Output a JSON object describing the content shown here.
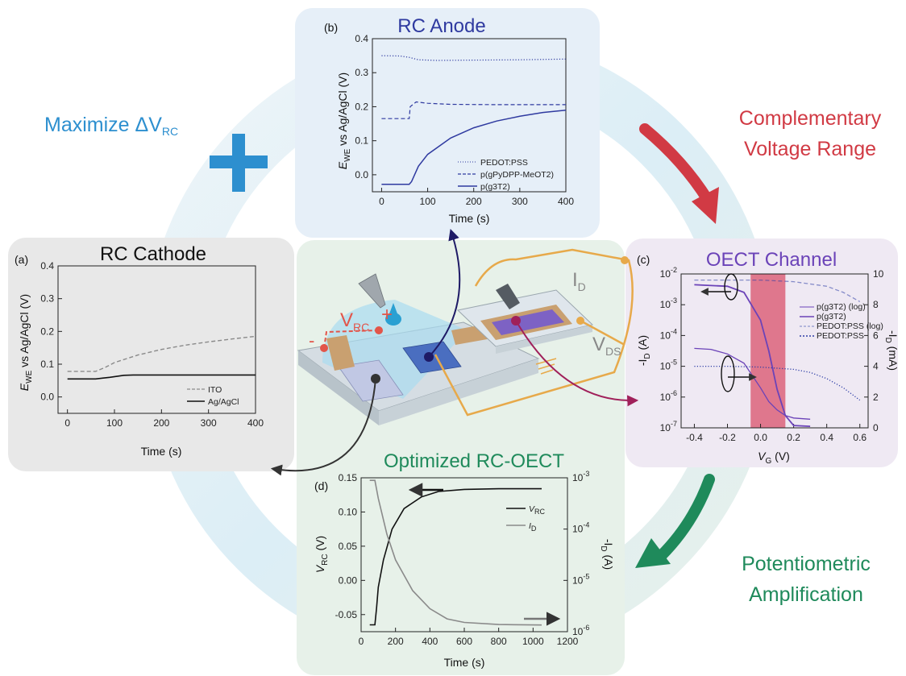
{
  "colors": {
    "anode_series": "#2f3aa0",
    "cathode_solid": "#111111",
    "cathode_dashed": "#8a8a8a",
    "channel_pgt": "#6b43b8",
    "channel_pedot": "#2e3ea6",
    "window": "#d9506b",
    "maximize": "#2d8fcf",
    "complementary": "#d13a44",
    "potentiometric": "#1f8a5b"
  },
  "callouts": {
    "maximize_prefix": "Maximize ",
    "maximize_delta": "ΔV",
    "maximize_sub": "RC",
    "complementary_line1": "Complementary",
    "complementary_line2": "Voltage Range",
    "potentiometric_line1": "Potentiometric",
    "potentiometric_line2": "Amplification"
  },
  "device": {
    "vrc_label": "V",
    "vrc_sub": "RC",
    "plus": "+",
    "minus": "-",
    "id_label": "I",
    "id_sub": "D",
    "vds_label": "V",
    "vds_sub": "DS"
  },
  "panels": {
    "anode": {
      "title": "RC Anode",
      "letter": "(b)",
      "ylabel_E": "E",
      "ylabel_sub": "WE",
      "ylabel_rest": " vs Ag/AgCl (V)",
      "xlabel": "Time (s)",
      "x_ticks": [
        "0",
        "100",
        "200",
        "300",
        "400"
      ],
      "y_ticks": [
        "0.0",
        "0.1",
        "0.2",
        "0.3",
        "0.4"
      ]
    },
    "cathode": {
      "title": "RC Cathode",
      "letter": "(a)",
      "ylabel_E": "E",
      "ylabel_sub": "WE",
      "ylabel_rest": " vs Ag/AgCl (V)",
      "xlabel": "Time (s)",
      "x_ticks": [
        "0",
        "100",
        "200",
        "300",
        "400"
      ],
      "y_ticks": [
        "0.0",
        "0.1",
        "0.2",
        "0.3",
        "0.4"
      ]
    },
    "channel": {
      "title": "OECT Channel",
      "letter": "(c)",
      "ylabel_left": "-I",
      "ylabel_left_sub": "D",
      "ylabel_left_unit": " (A)",
      "ylabel_right": "-I",
      "ylabel_right_sub": "D",
      "ylabel_right_unit": " (mA)",
      "xlabel_V": "V",
      "xlabel_sub": "G",
      "xlabel_unit": " (V)",
      "x_ticks": [
        "-0.4",
        "-0.2",
        "0.0",
        "0.2",
        "0.4",
        "0.6"
      ],
      "y_left_base": "10",
      "y_left_exps": [
        "-2",
        "-3",
        "-4",
        "-5",
        "-6",
        "-7"
      ],
      "y_right_ticks": [
        "0",
        "2",
        "4",
        "6",
        "8",
        "10"
      ]
    },
    "optimized": {
      "title": "Optimized RC-OECT",
      "letter": "(d)",
      "ylabel_left_V": "V",
      "ylabel_left_sub": "RC",
      "ylabel_left_unit": " (V)",
      "ylabel_right": "-I",
      "ylabel_right_sub": "D",
      "ylabel_right_unit": " (A)",
      "xlabel": "Time (s)",
      "x_ticks": [
        "0",
        "200",
        "400",
        "600",
        "800",
        "1000",
        "1200"
      ],
      "y_left_ticks": [
        "0.15",
        "0.10",
        "0.05",
        "0.00",
        "-0.05"
      ],
      "y_right_base": "10",
      "y_right_exps": [
        "-3",
        "-4",
        "-5",
        "-6"
      ]
    }
  },
  "chart_data": [
    {
      "type": "line",
      "panel": "b",
      "xlabel": "Time (s)",
      "ylabel": "E_WE vs Ag/AgCl (V)",
      "xlim": [
        -20,
        400
      ],
      "ylim": [
        -0.05,
        0.4
      ],
      "series": [
        {
          "name": "PEDOT:PSS",
          "style": "dotted",
          "x": [
            0,
            40,
            60,
            80,
            120,
            200,
            300,
            400
          ],
          "y": [
            0.35,
            0.349,
            0.345,
            0.338,
            0.336,
            0.337,
            0.338,
            0.34
          ]
        },
        {
          "name": "p(gPyDPP-MeOT2)",
          "style": "dashed",
          "x": [
            0,
            60,
            62,
            75,
            100,
            150,
            250,
            400
          ],
          "y": [
            0.165,
            0.165,
            0.2,
            0.214,
            0.21,
            0.207,
            0.206,
            0.206
          ]
        },
        {
          "name": "p(g3T2)",
          "style": "solid",
          "x": [
            0,
            60,
            65,
            80,
            100,
            150,
            200,
            250,
            300,
            350,
            400
          ],
          "y": [
            -0.028,
            -0.028,
            -0.02,
            0.025,
            0.06,
            0.108,
            0.138,
            0.158,
            0.172,
            0.183,
            0.19
          ]
        }
      ]
    },
    {
      "type": "line",
      "panel": "a",
      "xlabel": "Time (s)",
      "ylabel": "E_WE vs Ag/AgCl (V)",
      "xlim": [
        -20,
        400
      ],
      "ylim": [
        -0.05,
        0.4
      ],
      "series": [
        {
          "name": "ITO",
          "style": "dashed",
          "x": [
            0,
            60,
            80,
            100,
            150,
            200,
            250,
            300,
            350,
            400
          ],
          "y": [
            0.078,
            0.078,
            0.09,
            0.105,
            0.128,
            0.145,
            0.158,
            0.168,
            0.177,
            0.185
          ]
        },
        {
          "name": "Ag/AgCl",
          "style": "solid",
          "x": [
            0,
            60,
            90,
            120,
            140,
            200,
            300,
            400
          ],
          "y": [
            0.055,
            0.055,
            0.06,
            0.066,
            0.067,
            0.067,
            0.067,
            0.067
          ]
        }
      ]
    },
    {
      "type": "line",
      "panel": "c",
      "xlabel": "V_G (V)",
      "ylabel_left": "-I_D (A)",
      "ylabel_right": "-I_D (mA)",
      "xlim": [
        -0.48,
        0.65
      ],
      "ylim_left_log": [
        -7,
        -2
      ],
      "ylim_right": [
        0,
        10
      ],
      "window": [
        -0.06,
        0.15
      ],
      "series": [
        {
          "name": "p(g3T2) (log)",
          "style": "solid",
          "axis": "left-log",
          "x": [
            -0.4,
            -0.3,
            -0.2,
            -0.1,
            0.0,
            0.05,
            0.1,
            0.15,
            0.2,
            0.3
          ],
          "y": [
            -4.42,
            -4.45,
            -4.6,
            -4.9,
            -5.7,
            -6.15,
            -6.42,
            -6.6,
            -6.68,
            -6.72
          ]
        },
        {
          "name": "p(g3T2)",
          "style": "solid",
          "axis": "right-linear",
          "x": [
            -0.4,
            -0.2,
            -0.1,
            0.0,
            0.05,
            0.1,
            0.15,
            0.2,
            0.3
          ],
          "y": [
            9.3,
            9.2,
            8.8,
            7.0,
            5.0,
            2.5,
            0.8,
            0.15,
            0.1
          ]
        },
        {
          "name": "PEDOT:PSS (log)",
          "style": "dashed",
          "axis": "left-log",
          "x": [
            -0.4,
            -0.2,
            0.0,
            0.2,
            0.4,
            0.5,
            0.6
          ],
          "y": [
            -2.2,
            -2.2,
            -2.2,
            -2.25,
            -2.4,
            -2.6,
            -2.9
          ]
        },
        {
          "name": "PEDOT:PSS",
          "style": "dotted",
          "axis": "right-linear",
          "x": [
            -0.4,
            -0.2,
            0.0,
            0.2,
            0.3,
            0.4,
            0.5,
            0.55,
            0.6
          ],
          "y": [
            4.0,
            4.0,
            3.95,
            3.8,
            3.6,
            3.2,
            2.6,
            2.2,
            1.8
          ]
        }
      ]
    },
    {
      "type": "line",
      "panel": "d",
      "xlabel": "Time (s)",
      "ylabel_left": "V_RC (V)",
      "ylabel_right": "-I_D (A)",
      "xlim": [
        0,
        1200
      ],
      "ylim_left": [
        -0.075,
        0.15
      ],
      "ylim_right_log": [
        -6,
        -3
      ],
      "series": [
        {
          "name": "V_RC",
          "style": "solid",
          "axis": "left",
          "x": [
            50,
            80,
            90,
            100,
            130,
            180,
            250,
            350,
            450,
            600,
            800,
            1050
          ],
          "y": [
            -0.065,
            -0.065,
            -0.04,
            -0.01,
            0.03,
            0.075,
            0.105,
            0.122,
            0.13,
            0.133,
            0.134,
            0.134
          ]
        },
        {
          "name": "I_D",
          "style": "solid",
          "axis": "right-log",
          "x": [
            50,
            80,
            100,
            150,
            200,
            300,
            400,
            500,
            600,
            800,
            1050
          ],
          "y": [
            -3.05,
            -3.05,
            -3.4,
            -4.1,
            -4.6,
            -5.2,
            -5.55,
            -5.75,
            -5.82,
            -5.86,
            -5.87
          ]
        }
      ]
    }
  ]
}
